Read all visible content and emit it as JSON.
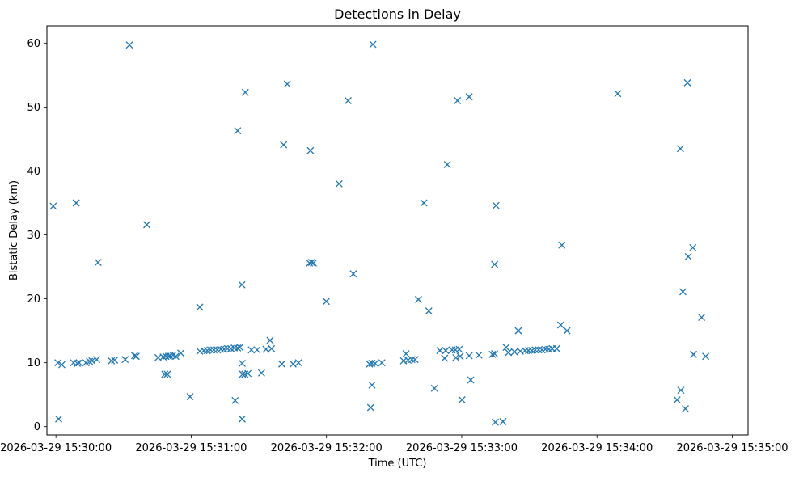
{
  "chart_data": {
    "type": "scatter",
    "title": "Detections in Delay",
    "xlabel": "Time (UTC)",
    "ylabel": "Bistatic Delay (km)",
    "x_tick_labels": [
      "2026-03-29 15:30:00",
      "2026-03-29 15:31:00",
      "2026-03-29 15:32:00",
      "2026-03-29 15:33:00",
      "2026-03-29 15:34:00",
      "2026-03-29 15:35:00"
    ],
    "y_tick_labels": [
      "0",
      "10",
      "20",
      "30",
      "40",
      "50",
      "60"
    ],
    "x_range": [
      "2026-03-29 15:29:56",
      "2026-03-29 15:35:07"
    ],
    "ylim": [
      -1.3,
      62.7
    ],
    "marker": "x",
    "color": "#1f77b4",
    "grid": false,
    "legend": "none",
    "points": [
      {
        "x": "15:29:58.8",
        "y": 34.5
      },
      {
        "x": "15:30:00.9",
        "y": 10.0
      },
      {
        "x": "15:30:01.2",
        "y": 1.2
      },
      {
        "x": "15:30:02.6",
        "y": 9.7
      },
      {
        "x": "15:30:07.8",
        "y": 10.0
      },
      {
        "x": "15:30:09.0",
        "y": 35.0
      },
      {
        "x": "15:30:09.5",
        "y": 9.9
      },
      {
        "x": "15:30:10.3",
        "y": 10.0
      },
      {
        "x": "15:30:13.3",
        "y": 10.0
      },
      {
        "x": "15:30:14.9",
        "y": 10.2
      },
      {
        "x": "15:30:16.0",
        "y": 10.3
      },
      {
        "x": "15:30:18.1",
        "y": 10.5
      },
      {
        "x": "15:30:18.7",
        "y": 25.7
      },
      {
        "x": "15:30:24.6",
        "y": 10.3
      },
      {
        "x": "15:30:26.0",
        "y": 10.4
      },
      {
        "x": "15:30:30.7",
        "y": 10.5
      },
      {
        "x": "15:30:32.6",
        "y": 59.7
      },
      {
        "x": "15:30:34.9",
        "y": 11.1
      },
      {
        "x": "15:30:35.6",
        "y": 11.0
      },
      {
        "x": "15:30:40.3",
        "y": 31.6
      },
      {
        "x": "15:30:45.3",
        "y": 10.8
      },
      {
        "x": "15:30:47.6",
        "y": 10.9
      },
      {
        "x": "15:30:48.3",
        "y": 8.2
      },
      {
        "x": "15:30:48.8",
        "y": 11.0
      },
      {
        "x": "15:30:49.4",
        "y": 8.2
      },
      {
        "x": "15:30:49.9",
        "y": 11.0
      },
      {
        "x": "15:30:50.5",
        "y": 11.1
      },
      {
        "x": "15:30:51.9",
        "y": 11.2
      },
      {
        "x": "15:30:53.2",
        "y": 11.0
      },
      {
        "x": "15:30:55.4",
        "y": 11.5
      },
      {
        "x": "15:30:59.5",
        "y": 4.7
      },
      {
        "x": "15:31:03.8",
        "y": 18.7
      },
      {
        "x": "15:31:03.8",
        "y": 11.8
      },
      {
        "x": "15:31:05.6",
        "y": 11.9
      },
      {
        "x": "15:31:07.1",
        "y": 11.9
      },
      {
        "x": "15:31:08.6",
        "y": 12.0
      },
      {
        "x": "15:31:10.1",
        "y": 12.0
      },
      {
        "x": "15:31:11.6",
        "y": 12.0
      },
      {
        "x": "15:31:13.1",
        "y": 12.1
      },
      {
        "x": "15:31:14.6",
        "y": 12.1
      },
      {
        "x": "15:31:16.1",
        "y": 12.2
      },
      {
        "x": "15:31:17.6",
        "y": 12.2
      },
      {
        "x": "15:31:19.1",
        "y": 12.3
      },
      {
        "x": "15:31:19.5",
        "y": 4.1
      },
      {
        "x": "15:31:20.6",
        "y": 12.3
      },
      {
        "x": "15:31:20.6",
        "y": 46.3
      },
      {
        "x": "15:31:21.6",
        "y": 12.4
      },
      {
        "x": "15:31:22.5",
        "y": 22.2
      },
      {
        "x": "15:31:22.6",
        "y": 9.9
      },
      {
        "x": "15:31:22.6",
        "y": 1.2
      },
      {
        "x": "15:31:22.8",
        "y": 8.2
      },
      {
        "x": "15:31:23.8",
        "y": 8.2
      },
      {
        "x": "15:31:24.0",
        "y": 52.3
      },
      {
        "x": "15:31:25.2",
        "y": 8.3
      },
      {
        "x": "15:31:26.7",
        "y": 12.0
      },
      {
        "x": "15:31:29.2",
        "y": 12.0
      },
      {
        "x": "15:31:31.2",
        "y": 8.4
      },
      {
        "x": "15:31:33.2",
        "y": 12.1
      },
      {
        "x": "15:31:35.0",
        "y": 13.5
      },
      {
        "x": "15:31:35.6",
        "y": 12.2
      },
      {
        "x": "15:31:40.2",
        "y": 9.8
      },
      {
        "x": "15:31:41.0",
        "y": 44.1
      },
      {
        "x": "15:31:42.6",
        "y": 53.6
      },
      {
        "x": "15:31:45.2",
        "y": 9.8
      },
      {
        "x": "15:31:47.6",
        "y": 10.0
      },
      {
        "x": "15:31:52.5",
        "y": 25.6
      },
      {
        "x": "15:31:52.9",
        "y": 43.2
      },
      {
        "x": "15:31:53.4",
        "y": 25.7
      },
      {
        "x": "15:31:54.2",
        "y": 25.6
      },
      {
        "x": "15:31:59.9",
        "y": 19.6
      },
      {
        "x": "15:32:05.6",
        "y": 38.0
      },
      {
        "x": "15:32:09.6",
        "y": 51.0
      },
      {
        "x": "15:32:11.9",
        "y": 23.9
      },
      {
        "x": "15:32:19.1",
        "y": 9.8
      },
      {
        "x": "15:32:19.6",
        "y": 3.0
      },
      {
        "x": "15:32:20.2",
        "y": 9.9
      },
      {
        "x": "15:32:20.2",
        "y": 6.5
      },
      {
        "x": "15:32:20.6",
        "y": 59.8
      },
      {
        "x": "15:32:21.6",
        "y": 9.9
      },
      {
        "x": "15:32:24.6",
        "y": 10.0
      },
      {
        "x": "15:32:34.2",
        "y": 10.3
      },
      {
        "x": "15:32:35.3",
        "y": 11.4
      },
      {
        "x": "15:32:36.2",
        "y": 10.4
      },
      {
        "x": "15:32:37.9",
        "y": 10.5
      },
      {
        "x": "15:32:39.3",
        "y": 10.5
      },
      {
        "x": "15:32:40.8",
        "y": 19.9
      },
      {
        "x": "15:32:43.2",
        "y": 35.0
      },
      {
        "x": "15:32:45.4",
        "y": 18.1
      },
      {
        "x": "15:32:47.9",
        "y": 6.0
      },
      {
        "x": "15:32:50.3",
        "y": 11.9
      },
      {
        "x": "15:32:52.4",
        "y": 10.7
      },
      {
        "x": "15:32:52.9",
        "y": 11.9
      },
      {
        "x": "15:32:53.6",
        "y": 41.0
      },
      {
        "x": "15:32:55.7",
        "y": 12.0
      },
      {
        "x": "15:32:57.2",
        "y": 12.0
      },
      {
        "x": "15:32:57.4",
        "y": 10.8
      },
      {
        "x": "15:32:58.1",
        "y": 51.0
      },
      {
        "x": "15:32:58.9",
        "y": 12.1
      },
      {
        "x": "15:32:59.3",
        "y": 11.0
      },
      {
        "x": "15:33:00.1",
        "y": 4.2
      },
      {
        "x": "15:33:03.3",
        "y": 11.1
      },
      {
        "x": "15:33:03.3",
        "y": 51.6
      },
      {
        "x": "15:33:04.0",
        "y": 7.3
      },
      {
        "x": "15:33:07.6",
        "y": 11.2
      },
      {
        "x": "15:33:13.6",
        "y": 11.3
      },
      {
        "x": "15:33:14.6",
        "y": 25.4
      },
      {
        "x": "15:33:14.6",
        "y": 11.4
      },
      {
        "x": "15:33:14.9",
        "y": 0.7
      },
      {
        "x": "15:33:15.2",
        "y": 34.6
      },
      {
        "x": "15:33:18.3",
        "y": 0.8
      },
      {
        "x": "15:33:19.7",
        "y": 12.4
      },
      {
        "x": "15:33:20.7",
        "y": 11.6
      },
      {
        "x": "15:33:23.4",
        "y": 11.7
      },
      {
        "x": "15:33:25.1",
        "y": 15.0
      },
      {
        "x": "15:33:26.0",
        "y": 11.8
      },
      {
        "x": "15:33:28.1",
        "y": 11.9
      },
      {
        "x": "15:33:29.6",
        "y": 11.9
      },
      {
        "x": "15:33:31.1",
        "y": 11.9
      },
      {
        "x": "15:33:32.6",
        "y": 12.0
      },
      {
        "x": "15:33:34.1",
        "y": 12.0
      },
      {
        "x": "15:33:35.6",
        "y": 12.0
      },
      {
        "x": "15:33:37.1",
        "y": 12.1
      },
      {
        "x": "15:33:38.6",
        "y": 12.1
      },
      {
        "x": "15:33:40.1",
        "y": 12.2
      },
      {
        "x": "15:33:42.1",
        "y": 12.2
      },
      {
        "x": "15:33:43.9",
        "y": 15.9
      },
      {
        "x": "15:33:44.4",
        "y": 28.4
      },
      {
        "x": "15:33:46.7",
        "y": 15.0
      },
      {
        "x": "15:34:09.2",
        "y": 52.1
      },
      {
        "x": "15:34:35.5",
        "y": 4.2
      },
      {
        "x": "15:34:37.0",
        "y": 43.5
      },
      {
        "x": "15:34:37.2",
        "y": 5.7
      },
      {
        "x": "15:34:38.1",
        "y": 21.1
      },
      {
        "x": "15:34:39.2",
        "y": 2.8
      },
      {
        "x": "15:34:40.1",
        "y": 53.8
      },
      {
        "x": "15:34:40.5",
        "y": 26.6
      },
      {
        "x": "15:34:42.5",
        "y": 28.0
      },
      {
        "x": "15:34:42.8",
        "y": 11.3
      },
      {
        "x": "15:34:46.4",
        "y": 17.1
      },
      {
        "x": "15:34:48.2",
        "y": 11.0
      }
    ]
  }
}
